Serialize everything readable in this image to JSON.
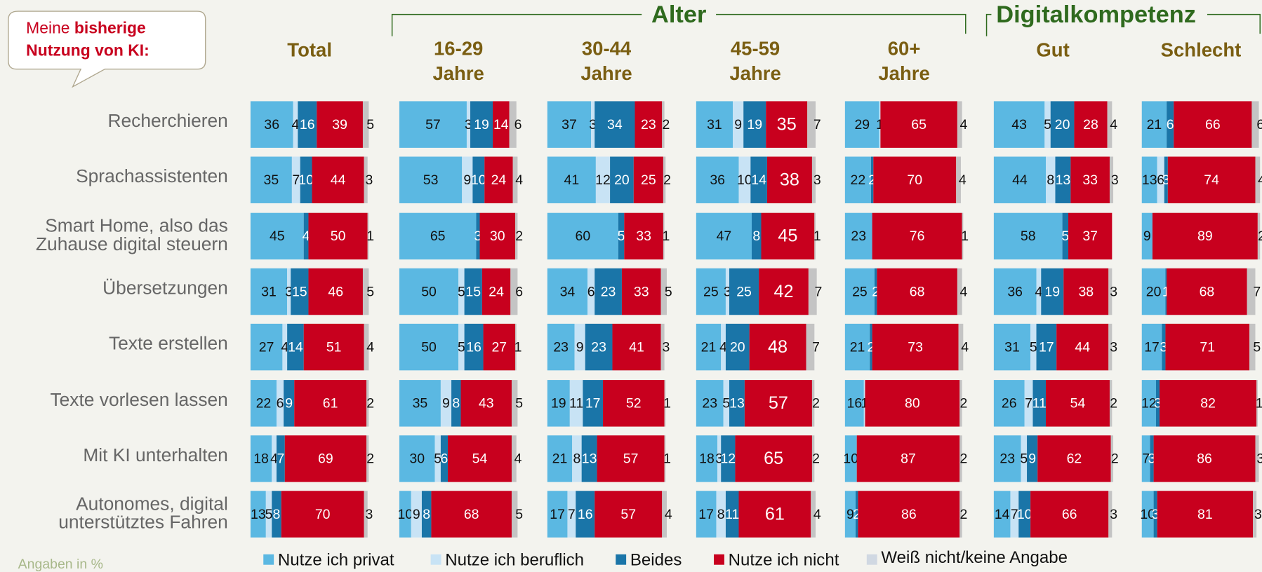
{
  "chart_data": {
    "type": "bar",
    "orientation": "horizontal",
    "stacked": true,
    "callout": [
      "Meine ",
      "bisherige",
      "Nutzung von KI:"
    ],
    "groups": [
      {
        "name": "Alter",
        "panels": [
          1,
          2,
          3,
          4
        ]
      },
      {
        "name": "Digitalkompetenz",
        "panels": [
          5,
          6
        ]
      }
    ],
    "categories": [
      "Recherchieren",
      "Sprachassistenten",
      [
        "Smart Home, also das",
        "Zuhause  digital steuern"
      ],
      "Übersetzungen",
      "Texte erstellen",
      "Texte vorlesen lassen",
      "Mit KI unterhalten",
      [
        "Autonomes, digital",
        "unterstütztes Fahren"
      ]
    ],
    "series": [
      {
        "name": "Nutze ich privat",
        "color": "#5bb8e2"
      },
      {
        "name": "Nutze ich beruflich",
        "color": "#c8e3f5"
      },
      {
        "name": "Beides",
        "color": "#1a75a8"
      },
      {
        "name": "Nutze ich nicht",
        "color": "#c8001e"
      },
      {
        "name": "Weiß nicht/keine Angabe",
        "color": "#c4c4c4"
      }
    ],
    "xlim": [
      0,
      100
    ],
    "panels": [
      {
        "title": [
          "Total"
        ],
        "values": [
          [
            36,
            4,
            16,
            39,
            5
          ],
          [
            35,
            7,
            10,
            44,
            3
          ],
          [
            45,
            null,
            4,
            50,
            1
          ],
          [
            31,
            3,
            15,
            46,
            5
          ],
          [
            27,
            4,
            14,
            51,
            4
          ],
          [
            22,
            6,
            9,
            61,
            2
          ],
          [
            18,
            4,
            7,
            69,
            2
          ],
          [
            13,
            5,
            8,
            70,
            3
          ]
        ]
      },
      {
        "title": [
          "16-29",
          "Jahre"
        ],
        "values": [
          [
            57,
            3,
            19,
            14,
            6
          ],
          [
            53,
            9,
            10,
            24,
            4
          ],
          [
            65,
            null,
            3,
            30,
            2
          ],
          [
            50,
            5,
            15,
            24,
            6
          ],
          [
            50,
            5,
            16,
            27,
            1
          ],
          [
            35,
            9,
            8,
            43,
            5
          ],
          [
            30,
            5,
            6,
            54,
            4
          ],
          [
            10,
            9,
            8,
            68,
            5
          ]
        ]
      },
      {
        "title": [
          "30-44",
          "Jahre"
        ],
        "values": [
          [
            37,
            3,
            34,
            23,
            2
          ],
          [
            41,
            12,
            20,
            25,
            2
          ],
          [
            60,
            null,
            5,
            33,
            1
          ],
          [
            34,
            6,
            23,
            33,
            5
          ],
          [
            23,
            9,
            23,
            41,
            3
          ],
          [
            19,
            11,
            17,
            52,
            1
          ],
          [
            21,
            8,
            13,
            57,
            1
          ],
          [
            17,
            7,
            16,
            57,
            4
          ]
        ]
      },
      {
        "title": [
          "45-59",
          "Jahre"
        ],
        "values": [
          [
            31,
            9,
            19,
            35,
            7
          ],
          [
            36,
            10,
            14,
            38,
            3
          ],
          [
            47,
            null,
            8,
            45,
            1
          ],
          [
            25,
            3,
            25,
            42,
            7
          ],
          [
            21,
            4,
            20,
            48,
            7
          ],
          [
            23,
            5,
            13,
            57,
            2
          ],
          [
            18,
            3,
            12,
            65,
            2
          ],
          [
            17,
            8,
            11,
            61,
            4
          ]
        ]
      },
      {
        "title": [
          "60+",
          "Jahre"
        ],
        "values": [
          [
            29,
            1,
            null,
            65,
            4
          ],
          [
            22,
            null,
            2,
            70,
            4
          ],
          [
            23,
            null,
            null,
            76,
            1
          ],
          [
            25,
            null,
            2,
            68,
            4
          ],
          [
            21,
            null,
            2,
            73,
            4
          ],
          [
            16,
            1,
            null,
            80,
            2
          ],
          [
            10,
            null,
            null,
            87,
            2
          ],
          [
            9,
            null,
            2,
            86,
            2
          ]
        ]
      },
      {
        "title": [
          "Gut"
        ],
        "values": [
          [
            43,
            5,
            20,
            28,
            4
          ],
          [
            44,
            8,
            13,
            33,
            3
          ],
          [
            58,
            null,
            5,
            37,
            null
          ],
          [
            36,
            4,
            19,
            38,
            3
          ],
          [
            31,
            5,
            17,
            44,
            3
          ],
          [
            26,
            7,
            11,
            54,
            2
          ],
          [
            23,
            5,
            9,
            62,
            2
          ],
          [
            14,
            7,
            10,
            66,
            3
          ]
        ]
      },
      {
        "title": [
          "Schlecht"
        ],
        "values": [
          [
            21,
            null,
            6,
            66,
            6
          ],
          [
            13,
            6,
            3,
            74,
            4
          ],
          [
            9,
            null,
            null,
            89,
            2
          ],
          [
            20,
            null,
            1,
            68,
            7
          ],
          [
            17,
            null,
            3,
            71,
            5
          ],
          [
            12,
            null,
            3,
            82,
            1
          ],
          [
            7,
            null,
            3,
            86,
            3
          ],
          [
            10,
            null,
            3,
            81,
            3
          ]
        ]
      }
    ],
    "footnote": "Angaben in %"
  }
}
